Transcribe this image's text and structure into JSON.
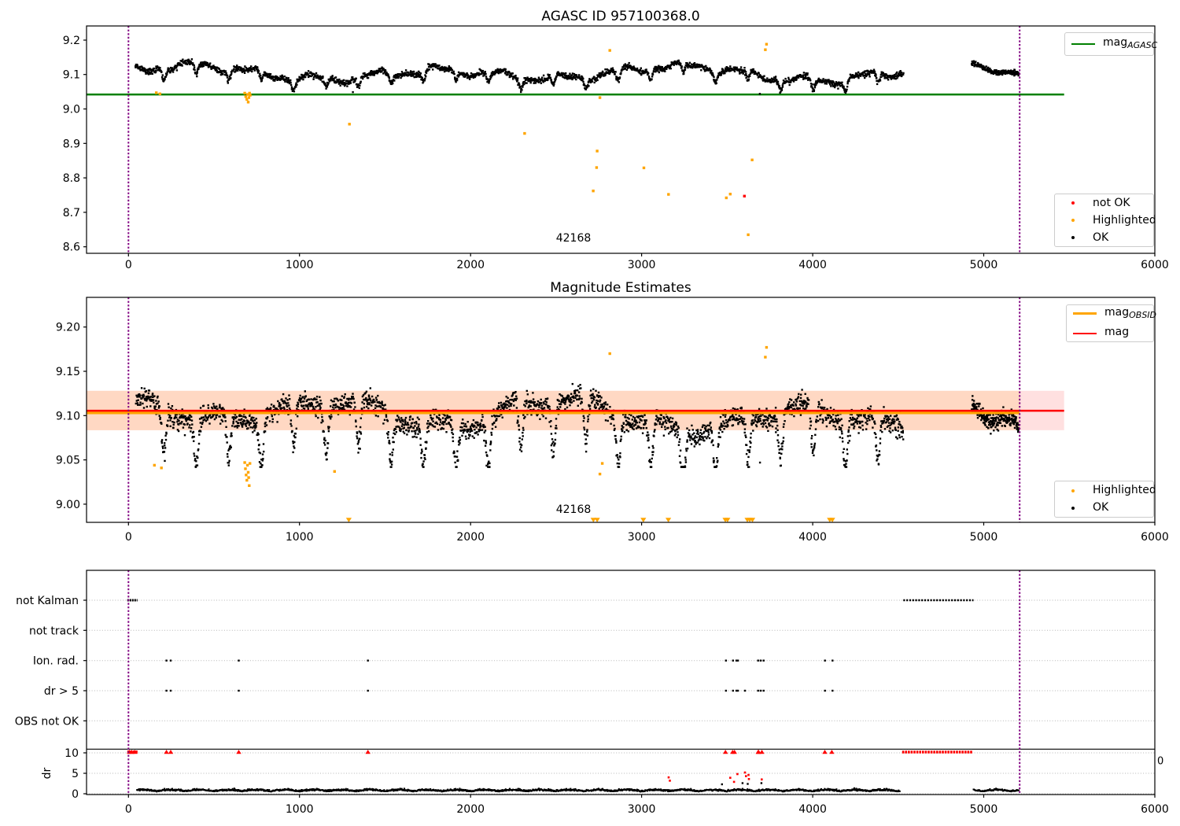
{
  "figure": {
    "title1": "AGASC ID 957100368.0",
    "title2": "Magnitude Estimates"
  },
  "colors": {
    "ok": "#000000",
    "highlighted": "#ffa500",
    "not_ok": "#ff0000",
    "mag_agasc_line": "#008000",
    "mag_line": "#ff0000",
    "mag_obsid_line": "#ffa500",
    "obsid_boundary": "#800080",
    "grid": "#b5b5b5"
  },
  "legends": {
    "p1_line": {
      "label_main": "mag",
      "label_sub": "AGASC",
      "color": "#008000"
    },
    "p1_markers": [
      {
        "label": "not OK",
        "color": "#ff0000"
      },
      {
        "label": "Highlighted",
        "color": "#ffa500"
      },
      {
        "label": "OK",
        "color": "#000000"
      }
    ],
    "p2_lines": [
      {
        "label_main": "mag",
        "label_sub": "OBSID",
        "color": "#ffa500"
      },
      {
        "label_main": "mag",
        "label_sub": "",
        "color": "#ff0000"
      }
    ],
    "p2_markers": [
      {
        "label": "Highlighted",
        "color": "#ffa500"
      },
      {
        "label": "OK",
        "color": "#000000"
      }
    ]
  },
  "chart_data": [
    {
      "type": "scatter",
      "title": "AGASC ID 957100368.0",
      "xlim": [
        -245,
        6000
      ],
      "ylim": [
        8.581,
        9.241
      ],
      "xticks": [
        0,
        1000,
        2000,
        3000,
        4000,
        5000,
        6000
      ],
      "yticks": [
        9.2,
        9.1,
        9.0,
        8.9,
        8.8,
        8.7,
        8.6
      ],
      "mag_agasc_line": {
        "y": 9.042,
        "x_start": -245,
        "x_end": 5470
      },
      "obsid_boundaries_x": [
        0,
        5210
      ],
      "annotation": {
        "text": "42168",
        "x": 2600,
        "y": 8.623
      },
      "ok_segments": [
        {
          "x0": 40,
          "x1": 4530,
          "n": 2300,
          "y_center": 9.103,
          "y_spread": 0.05
        },
        {
          "x0": 4930,
          "x1": 5205,
          "n": 230,
          "y_center": 9.115,
          "y_spread": 0.04
        }
      ],
      "ok_outliers": [
        [
          3691,
          9.044
        ],
        [
          1312,
          9.049
        ]
      ],
      "highlighted_points": [
        [
          163,
          9.047
        ],
        [
          184,
          9.044
        ],
        [
          680,
          9.046
        ],
        [
          686,
          9.036
        ],
        [
          692,
          9.028
        ],
        [
          697,
          9.042
        ],
        [
          700,
          9.02
        ],
        [
          704,
          9.033
        ],
        [
          708,
          9.046
        ],
        [
          712,
          9.04
        ],
        [
          1292,
          8.956
        ],
        [
          2316,
          8.929
        ],
        [
          2717,
          8.762
        ],
        [
          2737,
          8.83
        ],
        [
          2740,
          8.878
        ],
        [
          2756,
          9.033
        ],
        [
          2814,
          9.17
        ],
        [
          3013,
          8.829
        ],
        [
          3157,
          8.752
        ],
        [
          3495,
          8.742
        ],
        [
          3518,
          8.753
        ],
        [
          3623,
          8.635
        ],
        [
          3646,
          8.852
        ],
        [
          3723,
          9.172
        ],
        [
          3730,
          9.188
        ]
      ],
      "not_ok_points": [
        [
          3601,
          8.747
        ]
      ]
    },
    {
      "type": "scatter",
      "title": "Magnitude Estimates",
      "xlim": [
        -245,
        6000
      ],
      "ylim": [
        8.9795,
        9.2335
      ],
      "xticks": [
        0,
        1000,
        2000,
        3000,
        4000,
        5000,
        6000
      ],
      "yticks": [
        9.2,
        9.15,
        9.1,
        9.05,
        9.0
      ],
      "mag_line": {
        "y": 9.1055,
        "x_start": -245,
        "x_end": 5470
      },
      "mag_obsid_line": {
        "y": 9.103,
        "x_start": -245,
        "x_end": 5210
      },
      "mag_err_band": {
        "y0": 9.0835,
        "y1": 9.128,
        "x_start": -245,
        "x_end": 5470
      },
      "obsid_err_band": {
        "y0": 9.0835,
        "y1": 9.128,
        "x_start": -245,
        "x_end": 5210
      },
      "obsid_boundaries_x": [
        0,
        5210
      ],
      "annotation": {
        "text": "42168",
        "x": 2600,
        "y": 8.993
      },
      "ok_segments": [
        {
          "x0": 45,
          "x1": 4530,
          "n": 2500,
          "y_center": 9.101,
          "y_spread": 0.11
        },
        {
          "x0": 4930,
          "x1": 5205,
          "n": 240,
          "y_center": 9.11,
          "y_spread": 0.09
        }
      ],
      "ok_outliers": [
        [
          3692,
          9.047
        ]
      ],
      "highlighted_points": [
        [
          152,
          9.044
        ],
        [
          193,
          9.041
        ],
        [
          680,
          9.047
        ],
        [
          684,
          9.04
        ],
        [
          688,
          9.033
        ],
        [
          692,
          9.027
        ],
        [
          696,
          9.044
        ],
        [
          700,
          9.036
        ],
        [
          703,
          9.03
        ],
        [
          706,
          9.021
        ],
        [
          710,
          9.046
        ],
        [
          1205,
          9.037
        ],
        [
          2756,
          9.034
        ],
        [
          2770,
          9.046
        ],
        [
          2814,
          9.17
        ],
        [
          3723,
          9.166
        ],
        [
          3730,
          9.177
        ]
      ],
      "clipped_low_x": [
        1288,
        2718,
        2740,
        3010,
        3156,
        3489,
        3502,
        3618,
        3632,
        3648,
        4100,
        4115
      ]
    },
    {
      "type": "flags-and-dr",
      "rows": [
        "not Kalman",
        "not track",
        "Ion. rad.",
        "dr > 5",
        "OBS not OK"
      ],
      "xticks": [
        0,
        1000,
        2000,
        3000,
        4000,
        5000,
        6000
      ],
      "flag_points": {
        "ion_rad_x": [
          222,
          247,
          645,
          1400,
          3493,
          3534,
          3554,
          3563,
          3681,
          3696,
          3713,
          4072,
          4116
        ],
        "dr_gt_5_x": [
          222,
          247,
          645,
          1400,
          3493,
          3534,
          3554,
          3563,
          3604,
          3681,
          3696,
          3713,
          4072,
          4116
        ],
        "not_kalman_ranges": [
          [
            0,
            46
          ],
          [
            4530,
            4940
          ]
        ]
      },
      "dr": {
        "ylabel": "dr",
        "ticks": [
          10,
          5,
          0
        ],
        "threshold_value": 10.9,
        "red10_ranges": [
          [
            0,
            46
          ],
          [
            4530,
            4930
          ]
        ],
        "red10_x": [
          222,
          247,
          645,
          1400,
          3490,
          3532,
          3543,
          3681,
          3684,
          3703,
          4071,
          4112
        ],
        "red_points": [
          [
            3158,
            4.0
          ],
          [
            3165,
            3.2
          ],
          [
            3518,
            3.9
          ],
          [
            3540,
            2.9
          ],
          [
            3560,
            4.8
          ],
          [
            3604,
            5.2
          ],
          [
            3610,
            4.3
          ],
          [
            3625,
            4.6
          ],
          [
            3627,
            3.6
          ],
          [
            3702,
            3.5
          ]
        ],
        "black_points": [
          [
            3470,
            2.3
          ],
          [
            3590,
            2.6
          ],
          [
            3620,
            2.4
          ],
          [
            3700,
            2.6
          ]
        ],
        "trace_segments": [
          [
            50,
            4510
          ],
          [
            4940,
            5205
          ]
        ]
      },
      "right_axis_zero": "0"
    }
  ]
}
